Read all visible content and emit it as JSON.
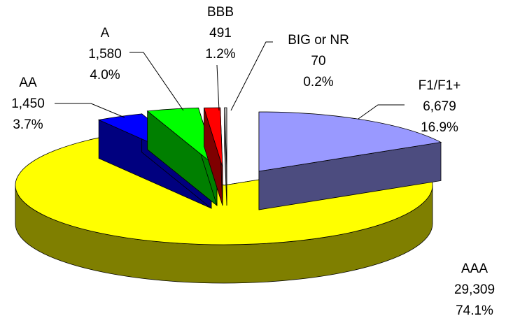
{
  "chart_data": {
    "type": "pie",
    "categories": [
      "F1/F1+",
      "AAA",
      "AA",
      "A",
      "BBB",
      "BIG or NR"
    ],
    "values": [
      6679,
      29309,
      1450,
      1580,
      491,
      70
    ],
    "value_labels": [
      "6,679",
      "29,309",
      "1,450",
      "1,580",
      "491",
      "70"
    ],
    "percents": [
      16.9,
      74.1,
      3.7,
      4.0,
      1.2,
      0.2
    ],
    "percent_labels": [
      "16.9%",
      "74.1%",
      "3.7%",
      "4.0%",
      "1.2%",
      "0.2%"
    ],
    "colors": [
      "#9999ff",
      "#ffff00",
      "#0000ff",
      "#00ff00",
      "#ff0000",
      "#c0c0c0"
    ]
  }
}
